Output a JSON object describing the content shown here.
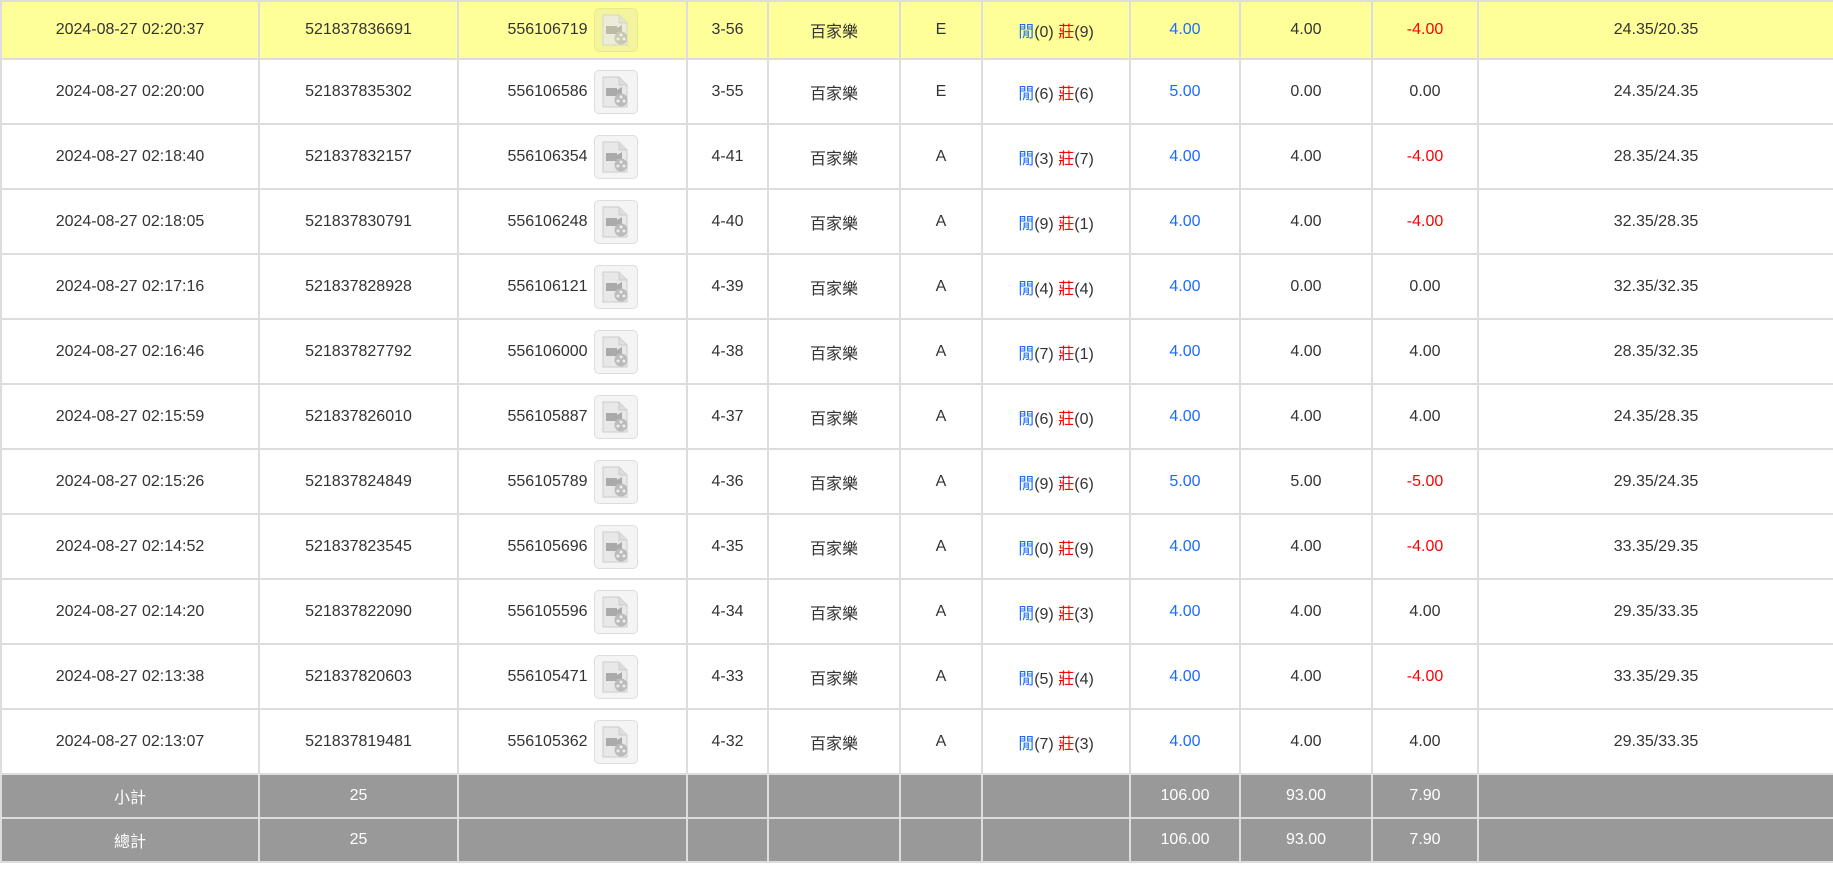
{
  "colors": {
    "highlight": "#ffff99",
    "blue": "#1a6cff",
    "red": "#ff0000",
    "summary_bg": "#999999"
  },
  "player_label": "閒",
  "banker_label": "莊",
  "rows": [
    {
      "time": "2024-08-27 02:20:37",
      "bet_id": "521837836691",
      "round_id": "556106719",
      "shoe": "3-56",
      "game": "百家樂",
      "table": "E",
      "player": "(0)",
      "banker": "(9)",
      "bet": "4.00",
      "valid": "4.00",
      "win": "-4.00",
      "win_neg": true,
      "balance": "24.35/20.35",
      "highlight": true
    },
    {
      "time": "2024-08-27 02:20:00",
      "bet_id": "521837835302",
      "round_id": "556106586",
      "shoe": "3-55",
      "game": "百家樂",
      "table": "E",
      "player": "(6)",
      "banker": "(6)",
      "bet": "5.00",
      "valid": "0.00",
      "win": "0.00",
      "win_neg": false,
      "balance": "24.35/24.35"
    },
    {
      "time": "2024-08-27 02:18:40",
      "bet_id": "521837832157",
      "round_id": "556106354",
      "shoe": "4-41",
      "game": "百家樂",
      "table": "A",
      "player": "(3)",
      "banker": "(7)",
      "bet": "4.00",
      "valid": "4.00",
      "win": "-4.00",
      "win_neg": true,
      "balance": "28.35/24.35"
    },
    {
      "time": "2024-08-27 02:18:05",
      "bet_id": "521837830791",
      "round_id": "556106248",
      "shoe": "4-40",
      "game": "百家樂",
      "table": "A",
      "player": "(9)",
      "banker": "(1)",
      "bet": "4.00",
      "valid": "4.00",
      "win": "-4.00",
      "win_neg": true,
      "balance": "32.35/28.35"
    },
    {
      "time": "2024-08-27 02:17:16",
      "bet_id": "521837828928",
      "round_id": "556106121",
      "shoe": "4-39",
      "game": "百家樂",
      "table": "A",
      "player": "(4)",
      "banker": "(4)",
      "bet": "4.00",
      "valid": "0.00",
      "win": "0.00",
      "win_neg": false,
      "balance": "32.35/32.35"
    },
    {
      "time": "2024-08-27 02:16:46",
      "bet_id": "521837827792",
      "round_id": "556106000",
      "shoe": "4-38",
      "game": "百家樂",
      "table": "A",
      "player": "(7)",
      "banker": "(1)",
      "bet": "4.00",
      "valid": "4.00",
      "win": "4.00",
      "win_neg": false,
      "balance": "28.35/32.35"
    },
    {
      "time": "2024-08-27 02:15:59",
      "bet_id": "521837826010",
      "round_id": "556105887",
      "shoe": "4-37",
      "game": "百家樂",
      "table": "A",
      "player": "(6)",
      "banker": "(0)",
      "bet": "4.00",
      "valid": "4.00",
      "win": "4.00",
      "win_neg": false,
      "balance": "24.35/28.35"
    },
    {
      "time": "2024-08-27 02:15:26",
      "bet_id": "521837824849",
      "round_id": "556105789",
      "shoe": "4-36",
      "game": "百家樂",
      "table": "A",
      "player": "(9)",
      "banker": "(6)",
      "bet": "5.00",
      "valid": "5.00",
      "win": "-5.00",
      "win_neg": true,
      "balance": "29.35/24.35"
    },
    {
      "time": "2024-08-27 02:14:52",
      "bet_id": "521837823545",
      "round_id": "556105696",
      "shoe": "4-35",
      "game": "百家樂",
      "table": "A",
      "player": "(0)",
      "banker": "(9)",
      "bet": "4.00",
      "valid": "4.00",
      "win": "-4.00",
      "win_neg": true,
      "balance": "33.35/29.35"
    },
    {
      "time": "2024-08-27 02:14:20",
      "bet_id": "521837822090",
      "round_id": "556105596",
      "shoe": "4-34",
      "game": "百家樂",
      "table": "A",
      "player": "(9)",
      "banker": "(3)",
      "bet": "4.00",
      "valid": "4.00",
      "win": "4.00",
      "win_neg": false,
      "balance": "29.35/33.35"
    },
    {
      "time": "2024-08-27 02:13:38",
      "bet_id": "521837820603",
      "round_id": "556105471",
      "shoe": "4-33",
      "game": "百家樂",
      "table": "A",
      "player": "(5)",
      "banker": "(4)",
      "bet": "4.00",
      "valid": "4.00",
      "win": "-4.00",
      "win_neg": true,
      "balance": "33.35/29.35"
    },
    {
      "time": "2024-08-27 02:13:07",
      "bet_id": "521837819481",
      "round_id": "556105362",
      "shoe": "4-32",
      "game": "百家樂",
      "table": "A",
      "player": "(7)",
      "banker": "(3)",
      "bet": "4.00",
      "valid": "4.00",
      "win": "4.00",
      "win_neg": false,
      "balance": "29.35/33.35"
    }
  ],
  "subtotal": {
    "label": "小計",
    "count": "25",
    "bet": "106.00",
    "valid": "93.00",
    "win": "7.90"
  },
  "total": {
    "label": "總計",
    "count": "25",
    "bet": "106.00",
    "valid": "93.00",
    "win": "7.90"
  }
}
